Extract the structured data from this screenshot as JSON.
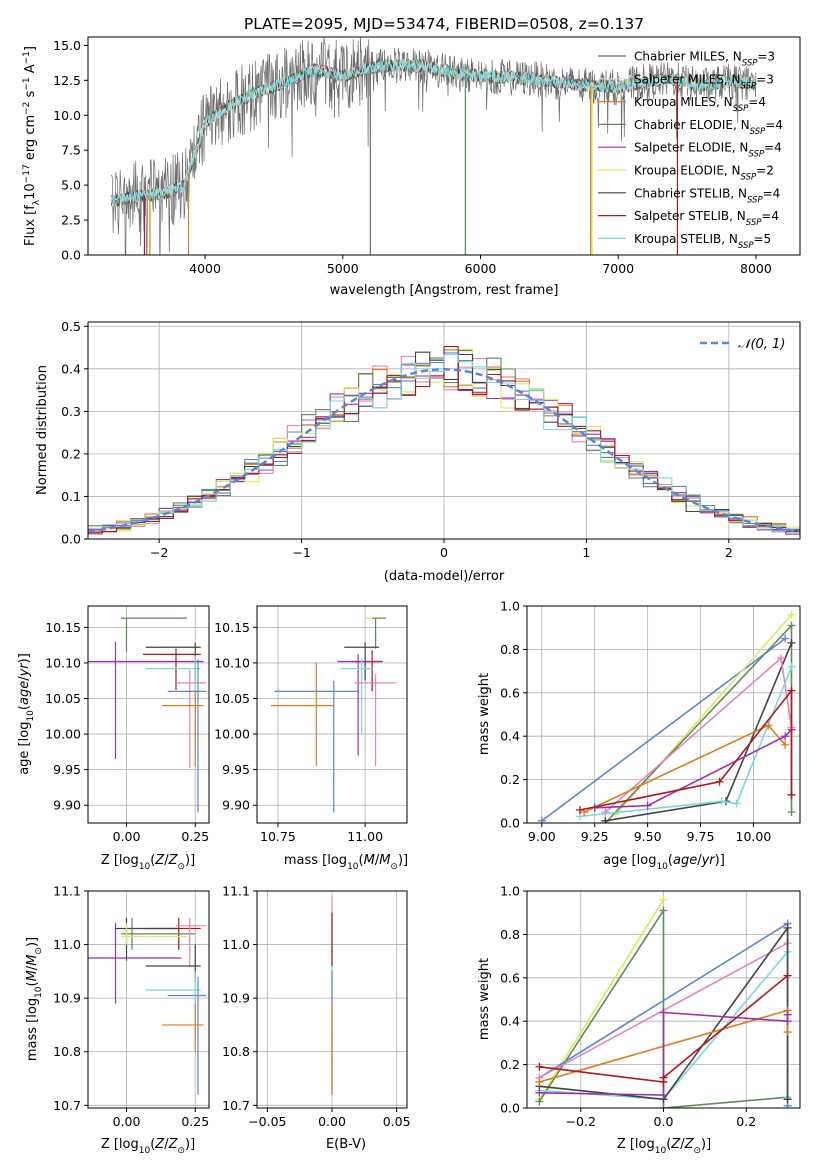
{
  "figure": {
    "title": "PLATE=2095, MJD=53474, FIBERID=0508, z=0.137"
  },
  "colors": {
    "Chabrier MILES": "#6b6b6b",
    "Salpeter MILES": "#d9d9d9",
    "Kroupa MILES": "#e07b1a",
    "Chabrier ELODIE": "#5f8a5f",
    "Salpeter ELODIE": "#9b30b8",
    "Kroupa ELODIE": "#d8ec5a",
    "Chabrier STELIB": "#444444",
    "Salpeter STELIB": "#b01818",
    "Kroupa STELIB": "#7ad8dc",
    "royal": "#5b86d6",
    "pink": "#e783bd"
  },
  "chart_data": [
    {
      "id": "spectrum",
      "type": "line",
      "title": "PLATE=2095, MJD=53474, FIBERID=0508, z=0.137",
      "xlabel": "wavelength [Angstrom, rest frame]",
      "ylabel": "Flux [f_λ 10^-17 erg cm^-2 s^-1 A^-1]",
      "xlim": [
        3150,
        8320
      ],
      "ylim": [
        0,
        15.6
      ],
      "xticks": [
        "4000",
        "5000",
        "6000",
        "7000",
        "8000"
      ],
      "yticks": [
        "0.0",
        "2.5",
        "5.0",
        "7.5",
        "10.0",
        "12.5",
        "15.0"
      ],
      "continuum": {
        "x": [
          3300,
          3500,
          3700,
          3850,
          4000,
          4200,
          4400,
          4600,
          4800,
          5000,
          5200,
          5400,
          5600,
          5800,
          6000,
          6200,
          6400,
          6600,
          6800,
          7000,
          7200,
          7400,
          7600,
          7800,
          8000
        ],
        "y": [
          3.8,
          4.2,
          4.4,
          5.0,
          9.5,
          10.8,
          11.7,
          12.4,
          13.3,
          12.8,
          13.4,
          13.6,
          13.5,
          13.0,
          12.8,
          12.7,
          12.6,
          12.3,
          12.1,
          12.0,
          12.4,
          12.6,
          12.1,
          12.4,
          12.3
        ]
      },
      "legend": [
        {
          "label": "Chabrier MILES, N_SSP=3",
          "color": "#6b6b6b"
        },
        {
          "label": "Salpeter MILES, N_SSP=3",
          "color": "#d9d9d9"
        },
        {
          "label": "Kroupa MILES, N_SSP=4",
          "color": "#e07b1a"
        },
        {
          "label": "Chabrier ELODIE, N_SSP=4",
          "color": "#5f8a5f"
        },
        {
          "label": "Salpeter ELODIE, N_SSP=4",
          "color": "#9b30b8"
        },
        {
          "label": "Kroupa ELODIE, N_SSP=2",
          "color": "#d8ec5a"
        },
        {
          "label": "Chabrier STELIB, N_SSP=4",
          "color": "#444444"
        },
        {
          "label": "Salpeter STELIB, N_SSP=4",
          "color": "#b01818"
        },
        {
          "label": "Kroupa STELIB, N_SSP=5",
          "color": "#7ad8dc"
        }
      ],
      "legend_placement": "right"
    },
    {
      "id": "residuals",
      "type": "line",
      "xlabel": "(data-model)/error",
      "ylabel": "Normed distribution",
      "xlim": [
        -2.5,
        2.5
      ],
      "ylim": [
        0,
        0.51
      ],
      "xticks": [
        "−2",
        "−1",
        "0",
        "1",
        "2"
      ],
      "yticks": [
        "0.0",
        "0.1",
        "0.2",
        "0.3",
        "0.4",
        "0.5"
      ],
      "grid": true,
      "bin_width": 0.1,
      "legend": [
        {
          "label": "𝒩(0, 1)",
          "style": "dashed",
          "color": "#5b86d6"
        }
      ],
      "legend_placement": "top-right"
    },
    {
      "id": "age-vs-Z",
      "type": "scatter",
      "xlabel": "Z [log10(Z/Z☉)]",
      "ylabel": "age  [log10(age/yr)]",
      "xlim": [
        -0.14,
        0.3
      ],
      "ylim": [
        9.875,
        10.18
      ],
      "xticks": [
        "0.00",
        "0.25"
      ],
      "yticks": [
        "9.90",
        "9.95",
        "10.00",
        "10.05",
        "10.10",
        "10.15"
      ],
      "grid": true,
      "points": [
        {
          "color": "#d8ec5a",
          "x": -0.02,
          "y": 10.163,
          "xlo": -0.02,
          "xhi": 0.2,
          "ylo": 10.163,
          "yhi": 10.163
        },
        {
          "color": "#5f8a5f",
          "x": 0.0,
          "y": 10.163,
          "xlo": -0.02,
          "xhi": 0.22,
          "ylo": 10.115,
          "yhi": 10.163
        },
        {
          "color": "#444444",
          "x": 0.25,
          "y": 10.122,
          "xlo": 0.07,
          "xhi": 0.27,
          "ylo": 10.075,
          "yhi": 10.128
        },
        {
          "color": "#b01818",
          "x": 0.18,
          "y": 10.112,
          "xlo": 0.06,
          "xhi": 0.27,
          "ylo": 10.062,
          "yhi": 10.12
        },
        {
          "color": "#9b30b8",
          "x": -0.04,
          "y": 10.102,
          "xlo": -0.14,
          "xhi": 0.28,
          "ylo": 9.965,
          "yhi": 10.13
        },
        {
          "color": "#7ad8dc",
          "x": 0.25,
          "y": 10.092,
          "xlo": 0.07,
          "xhi": 0.27,
          "ylo": 10.005,
          "yhi": 10.11
        },
        {
          "color": "#e783bd",
          "x": 0.23,
          "y": 10.072,
          "xlo": 0.18,
          "xhi": 0.29,
          "ylo": 9.952,
          "yhi": 10.09
        },
        {
          "color": "#5b86d6",
          "x": 0.26,
          "y": 10.06,
          "xlo": 0.15,
          "xhi": 0.29,
          "ylo": 9.89,
          "yhi": 10.105
        },
        {
          "color": "#e07b1a",
          "x": 0.25,
          "y": 10.04,
          "xlo": 0.13,
          "xhi": 0.28,
          "ylo": 9.955,
          "yhi": 10.06
        }
      ]
    },
    {
      "id": "age-vs-mass",
      "type": "scatter",
      "xlabel": "mass [log10(M/M☉)]",
      "ylabel": "",
      "xlim": [
        10.69,
        11.12
      ],
      "ylim": [
        9.875,
        10.18
      ],
      "xticks": [
        "10.75",
        "11.00"
      ],
      "yticks": [
        "9.90",
        "9.95",
        "10.00",
        "10.05",
        "10.10",
        "10.15"
      ],
      "grid": true,
      "points": [
        {
          "color": "#d8ec5a",
          "x": 11.04,
          "y": 10.163,
          "xlo": 11.0,
          "xhi": 11.06,
          "ylo": 10.163,
          "yhi": 10.163
        },
        {
          "color": "#5f8a5f",
          "x": 11.03,
          "y": 10.163,
          "xlo": 11.02,
          "xhi": 11.06,
          "ylo": 10.12,
          "yhi": 10.163
        },
        {
          "color": "#444444",
          "x": 11.0,
          "y": 10.122,
          "xlo": 10.94,
          "xhi": 11.04,
          "ylo": 10.075,
          "yhi": 10.128
        },
        {
          "color": "#b01818",
          "x": 11.02,
          "y": 10.102,
          "xlo": 10.96,
          "xhi": 11.05,
          "ylo": 10.06,
          "yhi": 10.118
        },
        {
          "color": "#9b30b8",
          "x": 10.98,
          "y": 10.102,
          "xlo": 10.92,
          "xhi": 11.04,
          "ylo": 9.97,
          "yhi": 10.112
        },
        {
          "color": "#7ad8dc",
          "x": 10.99,
          "y": 10.092,
          "xlo": 10.93,
          "xhi": 11.02,
          "ylo": 10.0,
          "yhi": 10.105
        },
        {
          "color": "#e783bd",
          "x": 11.03,
          "y": 10.072,
          "xlo": 10.97,
          "xhi": 11.09,
          "ylo": 9.955,
          "yhi": 10.085
        },
        {
          "color": "#5b86d6",
          "x": 10.91,
          "y": 10.06,
          "xlo": 10.74,
          "xhi": 10.98,
          "ylo": 9.89,
          "yhi": 10.075
        },
        {
          "color": "#e07b1a",
          "x": 10.86,
          "y": 10.04,
          "xlo": 10.73,
          "xhi": 10.91,
          "ylo": 9.955,
          "yhi": 10.1
        }
      ]
    },
    {
      "id": "massweight-vs-age",
      "type": "line",
      "xlabel": "age  [log10(age/yr)]",
      "ylabel": "mass weight",
      "xlim": [
        8.93,
        10.22
      ],
      "ylim": [
        0,
        1.0
      ],
      "xticks": [
        "9.00",
        "9.25",
        "9.50",
        "9.75",
        "10.00"
      ],
      "yticks": [
        "0.0",
        "0.2",
        "0.4",
        "0.6",
        "0.8",
        "1.0"
      ],
      "grid": true,
      "series": [
        {
          "color": "#5b86d6",
          "x": [
            9.0,
            10.15
          ],
          "y": [
            0.01,
            0.85
          ]
        },
        {
          "color": "#d8ec5a",
          "x": [
            9.35,
            10.18
          ],
          "y": [
            0.04,
            0.96
          ]
        },
        {
          "color": "#5f8a5f",
          "x": [
            9.3,
            10.18,
            10.18
          ],
          "y": [
            0.0,
            0.91,
            0.05
          ]
        },
        {
          "color": "#444444",
          "x": [
            9.3,
            9.87,
            10.18
          ],
          "y": [
            0.01,
            0.1,
            0.83
          ]
        },
        {
          "color": "#e783bd",
          "x": [
            9.3,
            10.13,
            10.18
          ],
          "y": [
            0.05,
            0.76,
            0.44
          ]
        },
        {
          "color": "#7ad8dc",
          "x": [
            9.18,
            9.85,
            9.92,
            10.18
          ],
          "y": [
            0.03,
            0.1,
            0.09,
            0.72
          ]
        },
        {
          "color": "#e07b1a",
          "x": [
            9.2,
            10.07,
            10.15
          ],
          "y": [
            0.05,
            0.45,
            0.36
          ]
        },
        {
          "color": "#9b30b8",
          "x": [
            9.25,
            9.5,
            10.15,
            10.18
          ],
          "y": [
            0.07,
            0.08,
            0.4,
            0.43
          ]
        },
        {
          "color": "#b01818",
          "x": [
            9.18,
            9.84,
            10.18,
            10.18
          ],
          "y": [
            0.06,
            0.19,
            0.61,
            0.13
          ]
        }
      ]
    },
    {
      "id": "mass-vs-Z",
      "type": "scatter",
      "xlabel": "Z [log10(Z/Z☉)]",
      "ylabel": "mass [log10(M/M☉)]",
      "xlim": [
        -0.14,
        0.3
      ],
      "ylim": [
        10.695,
        11.1
      ],
      "xticks": [
        "0.00",
        "0.25"
      ],
      "yticks": [
        "10.7",
        "10.8",
        "10.9",
        "11.0",
        "11.1"
      ],
      "grid": true,
      "points": [
        {
          "color": "#b01818",
          "x": 0.19,
          "y": 11.03,
          "xlo": 0.07,
          "xhi": 0.27,
          "ylo": 10.99,
          "yhi": 11.05
        },
        {
          "color": "#444444",
          "x": 0.0,
          "y": 11.03,
          "xlo": -0.04,
          "xhi": 0.19,
          "ylo": 10.97,
          "yhi": 11.05
        },
        {
          "color": "#5f8a5f",
          "x": 0.02,
          "y": 11.02,
          "xlo": -0.02,
          "xhi": 0.25,
          "ylo": 10.99,
          "yhi": 11.05
        },
        {
          "color": "#d8ec5a",
          "x": 0.0,
          "y": 11.015,
          "xlo": -0.02,
          "xhi": 0.22,
          "ylo": 11.0,
          "yhi": 11.04
        },
        {
          "color": "#e783bd",
          "x": 0.23,
          "y": 11.035,
          "xlo": 0.18,
          "xhi": 0.29,
          "ylo": 10.96,
          "yhi": 11.05
        },
        {
          "color": "#9b30b8",
          "x": -0.04,
          "y": 10.975,
          "xlo": -0.14,
          "xhi": 0.2,
          "ylo": 10.89,
          "yhi": 11.04
        },
        {
          "color": "#444444",
          "x": 0.25,
          "y": 10.96,
          "xlo": 0.07,
          "xhi": 0.27,
          "ylo": 10.93,
          "yhi": 11.0
        },
        {
          "color": "#7ad8dc",
          "x": 0.25,
          "y": 10.915,
          "xlo": 0.07,
          "xhi": 0.27,
          "ylo": 10.86,
          "yhi": 10.95
        },
        {
          "color": "#5b86d6",
          "x": 0.26,
          "y": 10.905,
          "xlo": 0.15,
          "xhi": 0.29,
          "ylo": 10.72,
          "yhi": 10.94
        },
        {
          "color": "#e07b1a",
          "x": 0.25,
          "y": 10.85,
          "xlo": 0.13,
          "xhi": 0.28,
          "ylo": 10.8,
          "yhi": 10.89
        }
      ]
    },
    {
      "id": "mass-vs-EBV",
      "type": "scatter",
      "xlabel": "E(B-V)",
      "ylabel": "",
      "xlim": [
        -0.058,
        0.058
      ],
      "ylim": [
        10.695,
        11.1
      ],
      "xticks": [
        "−0.05",
        "0.00",
        "0.05"
      ],
      "yticks": [
        "10.7",
        "10.8",
        "10.9",
        "11.0",
        "11.1"
      ],
      "grid": true,
      "points": [
        {
          "color": "#e783bd",
          "x": 0.0,
          "y": 11.0,
          "xlo": 0.0,
          "xhi": 0.0,
          "ylo": 10.93,
          "yhi": 11.09
        },
        {
          "color": "#7ad8dc",
          "x": 0.0,
          "y": 10.9,
          "xlo": 0.0,
          "xhi": 0.0,
          "ylo": 10.72,
          "yhi": 11.05
        },
        {
          "color": "#5b86d6",
          "x": 0.0,
          "y": 10.85,
          "xlo": 0.0,
          "xhi": 0.0,
          "ylo": 10.72,
          "yhi": 10.95
        },
        {
          "color": "#e07b1a",
          "x": 0.0,
          "y": 10.82,
          "xlo": 0.0,
          "xhi": 0.0,
          "ylo": 10.72,
          "yhi": 10.89
        },
        {
          "color": "#b01818",
          "x": 0.0,
          "y": 11.01,
          "xlo": 0.0,
          "xhi": 0.0,
          "ylo": 10.96,
          "yhi": 11.06
        }
      ]
    },
    {
      "id": "massweight-vs-Z",
      "type": "line",
      "xlabel": "Z [log10(Z/Z☉)]",
      "ylabel": "mass weight",
      "xlim": [
        -0.33,
        0.33
      ],
      "ylim": [
        0,
        1.0
      ],
      "xticks": [
        "−0.2",
        "0.0",
        "0.2"
      ],
      "yticks": [
        "0.0",
        "0.2",
        "0.4",
        "0.6",
        "0.8",
        "1.0"
      ],
      "grid": true,
      "series": [
        {
          "color": "#d8ec5a",
          "x": [
            -0.3,
            0.0
          ],
          "y": [
            0.04,
            0.96
          ]
        },
        {
          "color": "#5f8a5f",
          "x": [
            -0.3,
            0.0,
            0.0,
            0.3
          ],
          "y": [
            0.03,
            0.91,
            0.0,
            0.05
          ]
        },
        {
          "color": "#5b86d6",
          "x": [
            -0.3,
            0.3,
            0.3
          ],
          "y": [
            0.14,
            0.85,
            0.01
          ]
        },
        {
          "color": "#e783bd",
          "x": [
            -0.3,
            0.3,
            0.3
          ],
          "y": [
            0.14,
            0.76,
            0.04
          ]
        },
        {
          "color": "#7ad8dc",
          "x": [
            -0.3,
            0.0,
            0.3,
            0.3
          ],
          "y": [
            0.08,
            0.04,
            0.72,
            0.05
          ]
        },
        {
          "color": "#444444",
          "x": [
            -0.3,
            0.0,
            0.3,
            0.3
          ],
          "y": [
            0.1,
            0.04,
            0.83,
            0.04
          ]
        },
        {
          "color": "#e07b1a",
          "x": [
            -0.3,
            0.3,
            0.3
          ],
          "y": [
            0.12,
            0.45,
            0.35
          ]
        },
        {
          "color": "#9b30b8",
          "x": [
            -0.3,
            0.0,
            0.0,
            0.3,
            0.3
          ],
          "y": [
            0.07,
            0.06,
            0.44,
            0.4,
            0.43
          ]
        },
        {
          "color": "#b01818",
          "x": [
            -0.3,
            0.0,
            0.0,
            0.3
          ],
          "y": [
            0.19,
            0.12,
            0.14,
            0.61
          ]
        }
      ]
    }
  ]
}
